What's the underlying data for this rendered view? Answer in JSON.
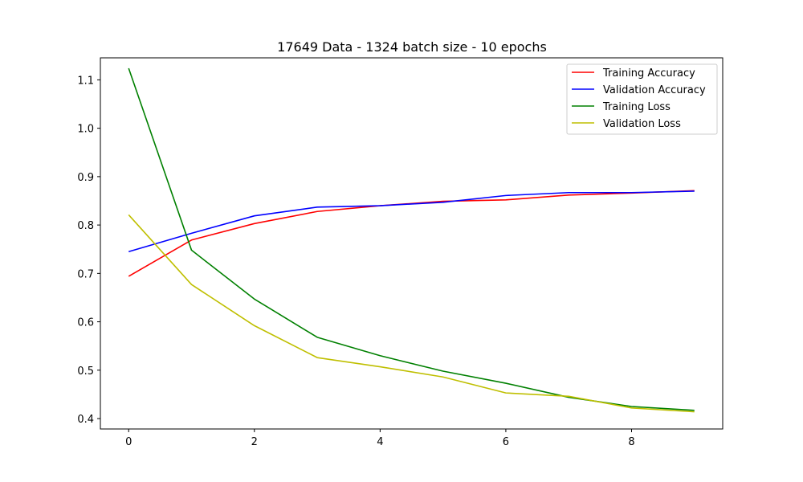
{
  "chart_data": {
    "type": "line",
    "title": "17649 Data - 1324 batch size - 10 epochs",
    "xlabel": "",
    "ylabel": "",
    "x": [
      0,
      1,
      2,
      3,
      4,
      5,
      6,
      7,
      8,
      9
    ],
    "xlim": [
      -0.45,
      9.45
    ],
    "ylim": [
      0.3785,
      1.1455
    ],
    "xticks": [
      0,
      2,
      4,
      6,
      8
    ],
    "xtick_labels": [
      "0",
      "2",
      "4",
      "6",
      "8"
    ],
    "yticks": [
      0.4,
      0.5,
      0.6,
      0.7,
      0.8,
      0.9,
      1.0,
      1.1
    ],
    "ytick_labels": [
      "0.4",
      "0.5",
      "0.6",
      "0.7",
      "0.8",
      "0.9",
      "1.0",
      "1.1"
    ],
    "grid": false,
    "legend_position": "top-right",
    "series": [
      {
        "name": "Training Accuracy",
        "color": "#ff0000",
        "values": [
          0.694,
          0.769,
          0.803,
          0.828,
          0.84,
          0.849,
          0.852,
          0.862,
          0.866,
          0.871
        ]
      },
      {
        "name": "Validation Accuracy",
        "color": "#0000ff",
        "values": [
          0.745,
          0.783,
          0.819,
          0.837,
          0.84,
          0.847,
          0.861,
          0.867,
          0.867,
          0.87
        ]
      },
      {
        "name": "Training Loss",
        "color": "#008000",
        "values": [
          1.124,
          0.748,
          0.647,
          0.568,
          0.53,
          0.498,
          0.473,
          0.444,
          0.425,
          0.417
        ]
      },
      {
        "name": "Validation Loss",
        "color": "#bfbf00",
        "values": [
          0.821,
          0.677,
          0.592,
          0.526,
          0.507,
          0.486,
          0.453,
          0.446,
          0.422,
          0.414
        ]
      }
    ]
  }
}
